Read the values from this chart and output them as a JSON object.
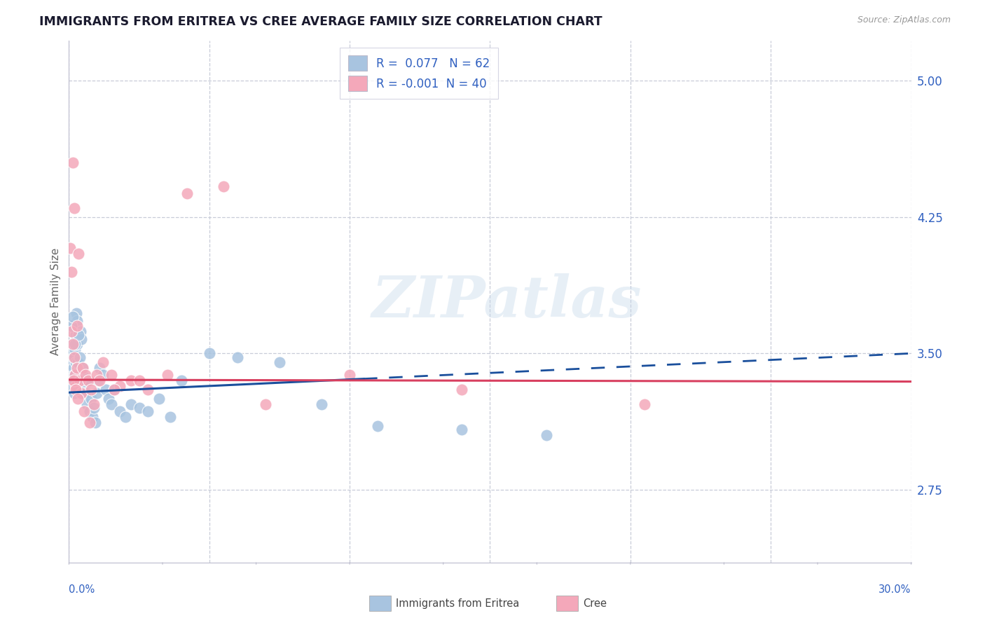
{
  "title": "IMMIGRANTS FROM ERITREA VS CREE AVERAGE FAMILY SIZE CORRELATION CHART",
  "source": "Source: ZipAtlas.com",
  "ylabel": "Average Family Size",
  "xmin": 0.0,
  "xmax": 30.0,
  "ymin": 2.35,
  "ymax": 5.22,
  "right_yticks": [
    2.75,
    3.5,
    4.25,
    5.0
  ],
  "blue_R": "0.077",
  "blue_N": "62",
  "pink_R": "-0.001",
  "pink_N": "40",
  "blue_dot_color": "#a8c4e0",
  "pink_dot_color": "#f4a8ba",
  "blue_line_color": "#1a4f9c",
  "pink_line_color": "#d84060",
  "legend_blue_label": "Immigrants from Eritrea",
  "legend_pink_label": "Cree",
  "watermark_text": "ZIPatlas",
  "background_color": "#ffffff",
  "grid_color": "#c8ccd8",
  "title_color": "#1a1a2e",
  "axis_label_color": "#666666",
  "right_tick_color": "#3060c0",
  "legend_text_color": "#3060c0",
  "blue_line_x0": 0.0,
  "blue_line_y0": 3.285,
  "blue_line_x1": 30.0,
  "blue_line_y1": 3.5,
  "blue_solid_end_x": 10.5,
  "pink_line_x0": 0.0,
  "pink_line_y0": 3.355,
  "pink_line_x1": 30.0,
  "pink_line_y1": 3.345,
  "blue_x": [
    0.08,
    0.1,
    0.11,
    0.12,
    0.13,
    0.14,
    0.15,
    0.16,
    0.17,
    0.18,
    0.19,
    0.2,
    0.22,
    0.24,
    0.25,
    0.26,
    0.28,
    0.3,
    0.32,
    0.35,
    0.38,
    0.4,
    0.42,
    0.45,
    0.48,
    0.5,
    0.55,
    0.6,
    0.65,
    0.7,
    0.75,
    0.8,
    0.85,
    0.9,
    0.95,
    1.0,
    1.05,
    1.1,
    1.2,
    1.3,
    1.4,
    1.5,
    1.6,
    1.8,
    2.0,
    2.2,
    2.5,
    2.8,
    3.2,
    3.6,
    4.0,
    5.0,
    6.0,
    7.5,
    9.0,
    11.0,
    14.0,
    17.0,
    0.09,
    0.13,
    0.21,
    0.33
  ],
  "blue_y": [
    3.42,
    3.38,
    3.5,
    3.32,
    3.45,
    3.38,
    3.55,
    3.48,
    3.42,
    3.35,
    3.28,
    3.38,
    3.52,
    3.45,
    3.6,
    3.72,
    3.68,
    3.55,
    3.45,
    3.38,
    3.35,
    3.48,
    3.62,
    3.58,
    3.42,
    3.38,
    3.32,
    3.28,
    3.22,
    3.35,
    3.18,
    3.25,
    3.15,
    3.2,
    3.12,
    3.28,
    3.35,
    3.42,
    3.38,
    3.3,
    3.25,
    3.22,
    3.3,
    3.18,
    3.15,
    3.22,
    3.2,
    3.18,
    3.25,
    3.15,
    3.35,
    3.5,
    3.48,
    3.45,
    3.22,
    3.1,
    3.08,
    3.05,
    3.65,
    3.7,
    3.55,
    3.6
  ],
  "pink_x": [
    0.05,
    0.1,
    0.15,
    0.18,
    0.2,
    0.22,
    0.25,
    0.28,
    0.3,
    0.35,
    0.4,
    0.45,
    0.5,
    0.6,
    0.7,
    0.8,
    0.9,
    1.0,
    1.2,
    1.5,
    1.8,
    2.2,
    2.8,
    3.5,
    4.2,
    5.5,
    7.0,
    10.0,
    14.0,
    20.5,
    0.08,
    0.13,
    0.17,
    0.23,
    0.32,
    0.55,
    0.75,
    1.1,
    1.6,
    2.5
  ],
  "pink_y": [
    4.08,
    3.62,
    3.55,
    4.3,
    3.48,
    3.38,
    3.32,
    3.42,
    3.65,
    4.05,
    3.35,
    3.28,
    3.42,
    3.38,
    3.35,
    3.3,
    3.22,
    3.38,
    3.45,
    3.38,
    3.32,
    3.35,
    3.3,
    3.38,
    4.38,
    4.42,
    3.22,
    3.38,
    3.3,
    3.22,
    3.95,
    4.55,
    3.35,
    3.3,
    3.25,
    3.18,
    3.12,
    3.35,
    3.3,
    3.35
  ]
}
